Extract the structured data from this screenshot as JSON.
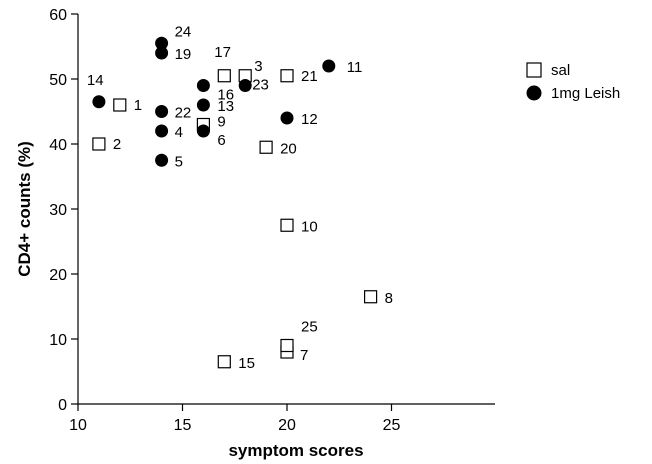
{
  "chart_data": {
    "type": "scatter",
    "xlabel": "symptom scores",
    "ylabel": "CD4+ counts (%)",
    "xlim": [
      10,
      26
    ],
    "ylim": [
      0,
      60
    ],
    "xticks": [
      10,
      15,
      20,
      25
    ],
    "yticks": [
      0,
      10,
      20,
      30,
      40,
      50,
      60
    ],
    "legend_position": "top-right",
    "series": [
      {
        "name": "sal",
        "marker": "open-square",
        "color": "#000000",
        "points": [
          {
            "label": "1",
            "x": 12,
            "y": 46
          },
          {
            "label": "2",
            "x": 11,
            "y": 40
          },
          {
            "label": "3",
            "x": 18,
            "y": 50.5
          },
          {
            "label": "7",
            "x": 20,
            "y": 8
          },
          {
            "label": "8",
            "x": 24,
            "y": 16.5
          },
          {
            "label": "9",
            "x": 16,
            "y": 43
          },
          {
            "label": "10",
            "x": 20,
            "y": 27.5
          },
          {
            "label": "15",
            "x": 17,
            "y": 6.5
          },
          {
            "label": "17",
            "x": 17,
            "y": 50.5
          },
          {
            "label": "20",
            "x": 19,
            "y": 39.5
          },
          {
            "label": "21",
            "x": 20,
            "y": 50.5
          },
          {
            "label": "25",
            "x": 20,
            "y": 9
          }
        ]
      },
      {
        "name": "1mg Leish",
        "marker": "filled-circle",
        "color": "#000000",
        "points": [
          {
            "label": "4",
            "x": 14,
            "y": 42
          },
          {
            "label": "5",
            "x": 14,
            "y": 37.5
          },
          {
            "label": "6",
            "x": 16,
            "y": 42
          },
          {
            "label": "11",
            "x": 22,
            "y": 52
          },
          {
            "label": "12",
            "x": 20,
            "y": 44
          },
          {
            "label": "13",
            "x": 16,
            "y": 46
          },
          {
            "label": "14",
            "x": 11,
            "y": 46.5
          },
          {
            "label": "16",
            "x": 16,
            "y": 49
          },
          {
            "label": "19",
            "x": 14,
            "y": 54
          },
          {
            "label": "22",
            "x": 14,
            "y": 45
          },
          {
            "label": "23",
            "x": 18,
            "y": 49
          },
          {
            "label": "24",
            "x": 14,
            "y": 55.5
          }
        ]
      }
    ]
  }
}
